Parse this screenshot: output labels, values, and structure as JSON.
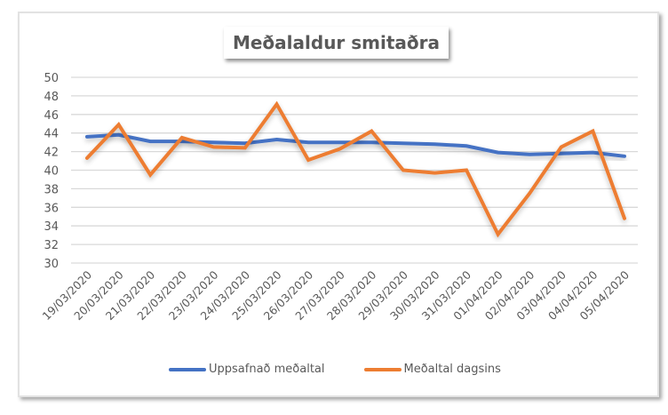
{
  "chart_data": {
    "type": "line",
    "title": "Meðalaldur smitaðra",
    "xlabel": "",
    "ylabel": "",
    "ylim": [
      30,
      50
    ],
    "yticks": [
      30,
      32,
      34,
      36,
      38,
      40,
      42,
      44,
      46,
      48,
      50
    ],
    "grid": true,
    "legend_position": "bottom",
    "categories": [
      "19/03/2020",
      "20/03/2020",
      "21/03/2020",
      "22/03/2020",
      "23/03/2020",
      "24/03/2020",
      "25/03/2020",
      "26/03/2020",
      "27/03/2020",
      "28/03/2020",
      "29/03/2020",
      "30/03/2020",
      "31/03/2020",
      "01/04/2020",
      "02/04/2020",
      "03/04/2020",
      "04/04/2020",
      "05/04/2020"
    ],
    "series": [
      {
        "name": "Uppsafnað meðaltal",
        "color": "#4472C4",
        "values": [
          43.6,
          43.8,
          43.1,
          43.1,
          43.0,
          42.9,
          43.3,
          43.0,
          43.0,
          43.0,
          42.9,
          42.8,
          42.6,
          41.9,
          41.7,
          41.8,
          41.9,
          41.5
        ]
      },
      {
        "name": "Meðaltal dagsins",
        "color": "#ED7D31",
        "values": [
          41.3,
          44.9,
          39.5,
          43.5,
          42.5,
          42.4,
          47.1,
          41.1,
          42.3,
          44.2,
          40.0,
          39.7,
          40.0,
          33.1,
          37.5,
          42.5,
          44.2,
          34.8
        ]
      }
    ]
  },
  "legend": {
    "items": [
      {
        "label": "Uppsafnað meðaltal",
        "color": "#4472C4"
      },
      {
        "label": "Meðaltal dagsins",
        "color": "#ED7D31"
      }
    ]
  }
}
